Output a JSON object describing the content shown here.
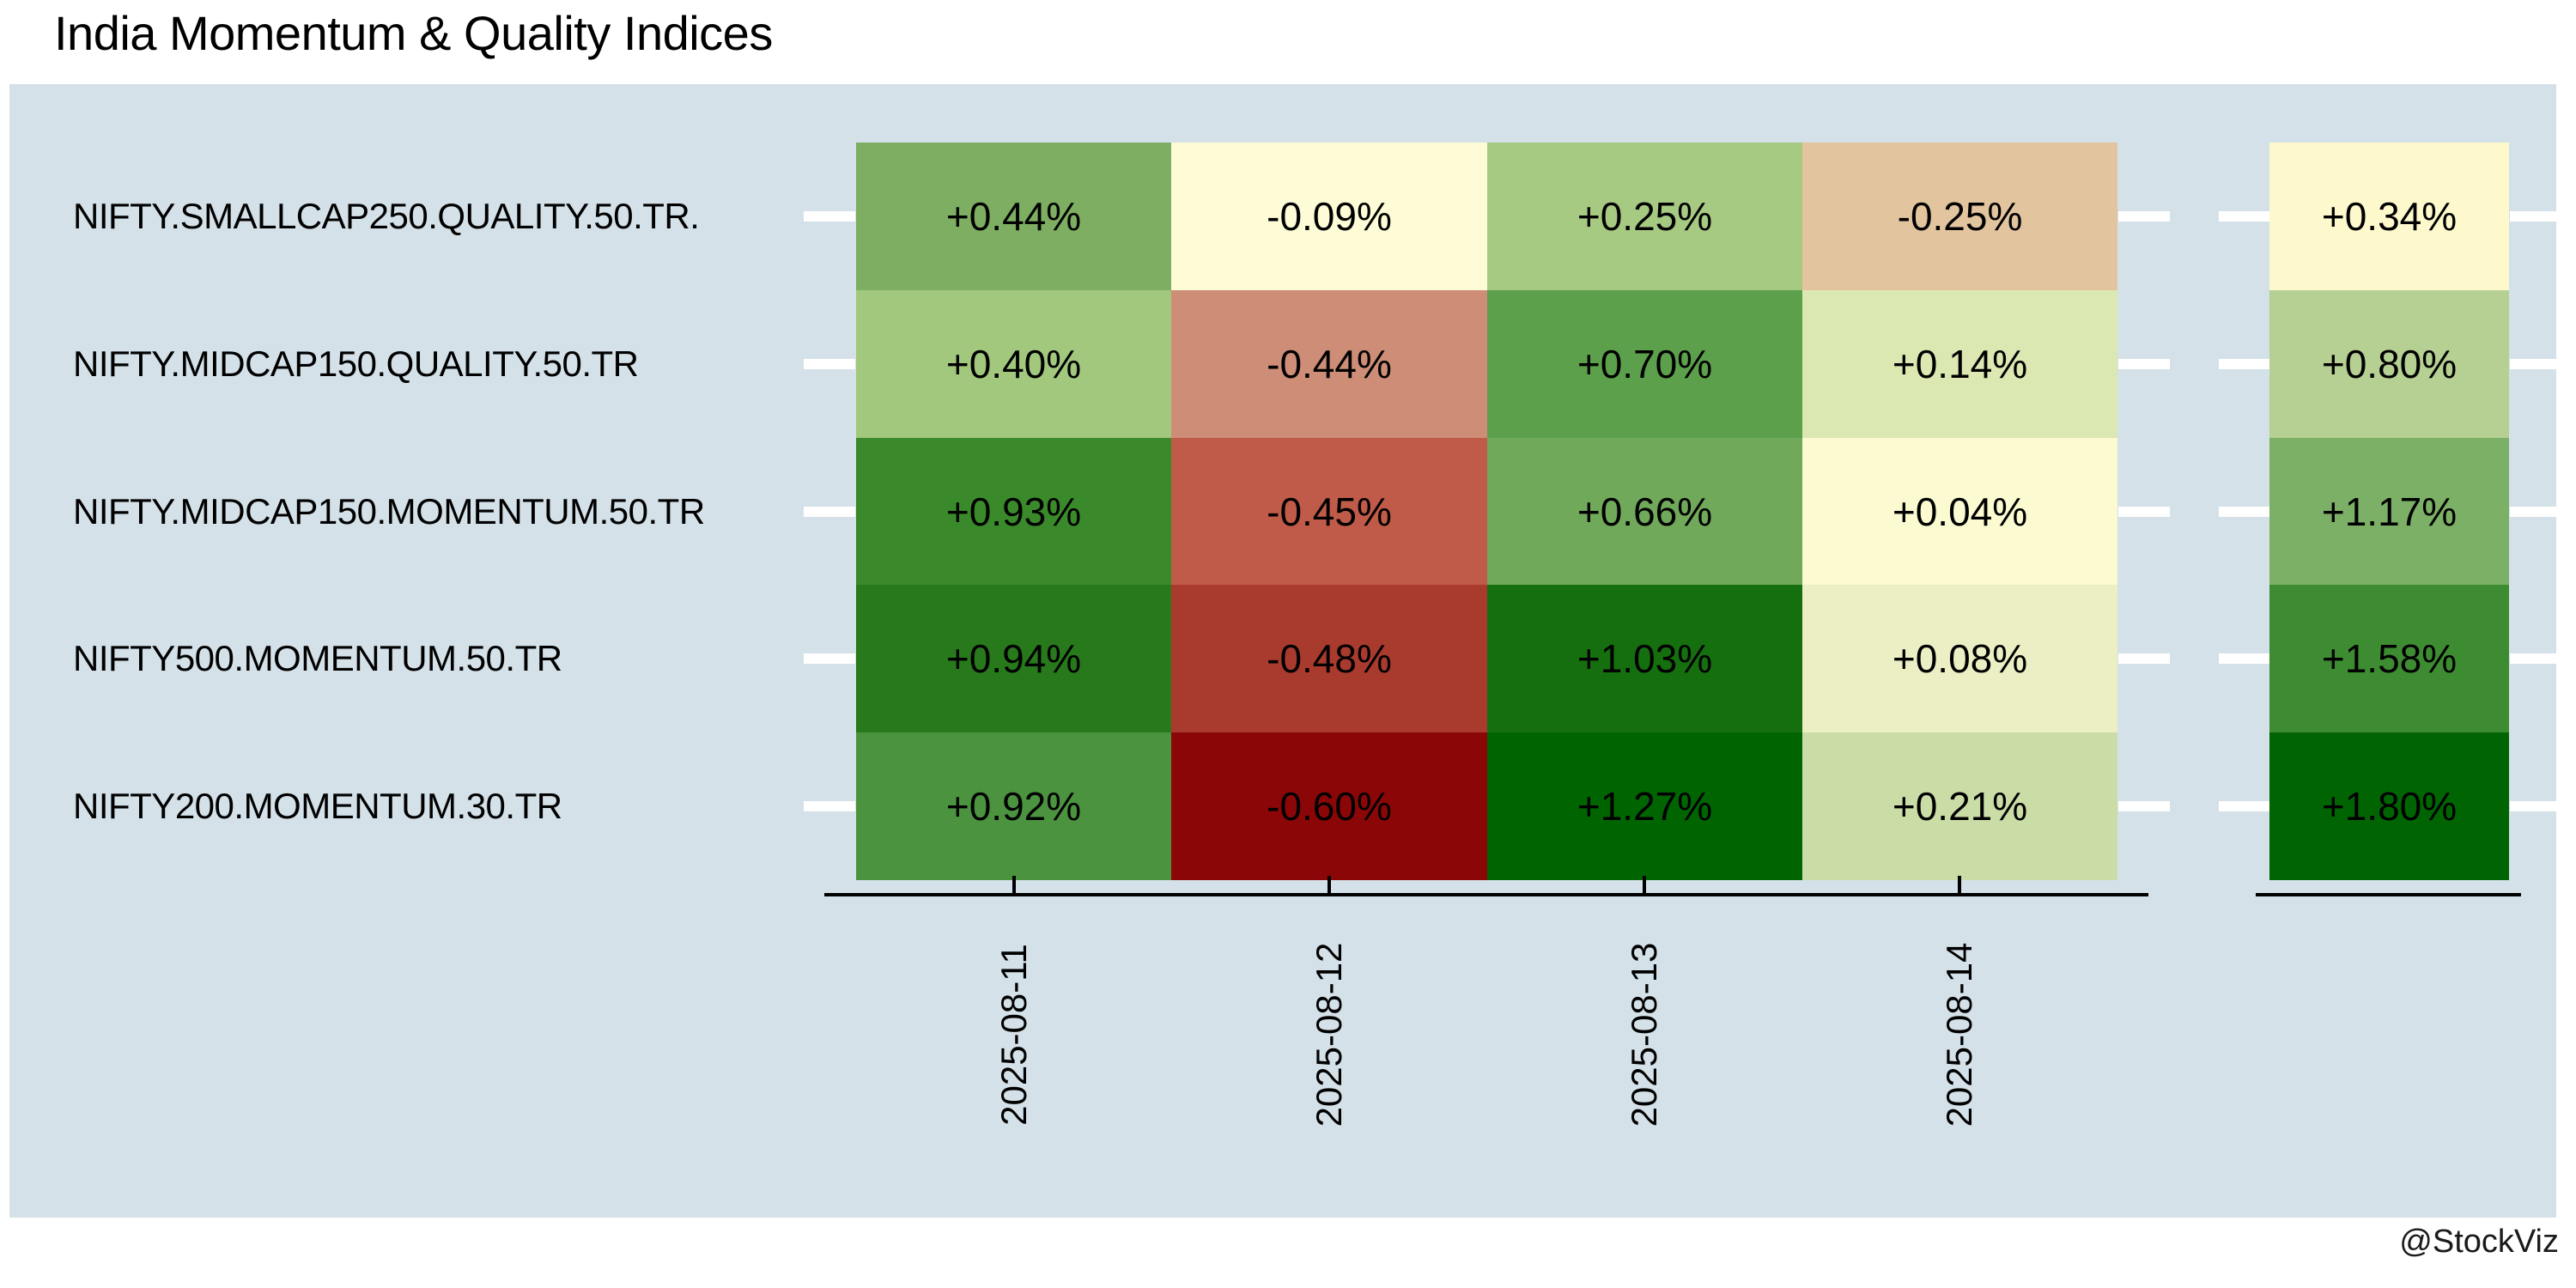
{
  "title": "India Momentum & Quality Indices",
  "watermark": "@StockViz",
  "colors": {
    "panel_bg": "#d4e1e8",
    "axis": "#000000",
    "tick_mark": "#ffffff",
    "text": "#000000"
  },
  "chart_data": {
    "type": "heatmap",
    "title": "India Momentum & Quality Indices",
    "colormap": "RdYlGn",
    "rows": [
      "NIFTY.SMALLCAP250.QUALITY.50.TR.",
      "NIFTY.MIDCAP150.QUALITY.50.TR",
      "NIFTY.MIDCAP150.MOMENTUM.50.TR",
      "NIFTY500.MOMENTUM.50.TR",
      "NIFTY200.MOMENTUM.30.TR"
    ],
    "columns": [
      "2025-08-11",
      "2025-08-12",
      "2025-08-13",
      "2025-08-14"
    ],
    "values": [
      [
        0.44,
        -0.09,
        0.25,
        -0.25
      ],
      [
        0.4,
        -0.44,
        0.7,
        0.14
      ],
      [
        0.93,
        -0.45,
        0.66,
        0.04
      ],
      [
        0.94,
        -0.48,
        1.03,
        0.08
      ],
      [
        0.92,
        -0.6,
        1.27,
        0.21
      ]
    ],
    "cell_labels": [
      [
        "+0.44%",
        "-0.09%",
        "+0.25%",
        "-0.25%"
      ],
      [
        "+0.40%",
        "-0.44%",
        "+0.70%",
        "+0.14%"
      ],
      [
        "+0.93%",
        "-0.45%",
        "+0.66%",
        "+0.04%"
      ],
      [
        "+0.94%",
        "-0.48%",
        "+1.03%",
        "+0.08%"
      ],
      [
        "+0.92%",
        "-0.60%",
        "+1.27%",
        "+0.21%"
      ]
    ],
    "cell_colors": [
      [
        "#7dae62",
        "#fdfcd6",
        "#a6ca82",
        "#e2c49e"
      ],
      [
        "#a2c87e",
        "#cd8d76",
        "#5ca04b",
        "#dce8b2"
      ],
      [
        "#3a8a2b",
        "#c05a49",
        "#70a95a",
        "#fbfad1"
      ],
      [
        "#27791b",
        "#a93a2e",
        "#156f0e",
        "#ecefc4"
      ],
      [
        "#4c9340",
        "#8b0707",
        "#006400",
        "#cbdda7"
      ]
    ],
    "summary_column": {
      "values": [
        0.34,
        0.8,
        1.17,
        1.58,
        1.8
      ],
      "labels": [
        "+0.34%",
        "+0.80%",
        "+1.17%",
        "+1.58%",
        "+1.80%"
      ],
      "colors": [
        "#fdf9cd",
        "#b5d092",
        "#7cb066",
        "#3e8c32",
        "#016402"
      ]
    },
    "legend_position": "none",
    "grid": false
  }
}
